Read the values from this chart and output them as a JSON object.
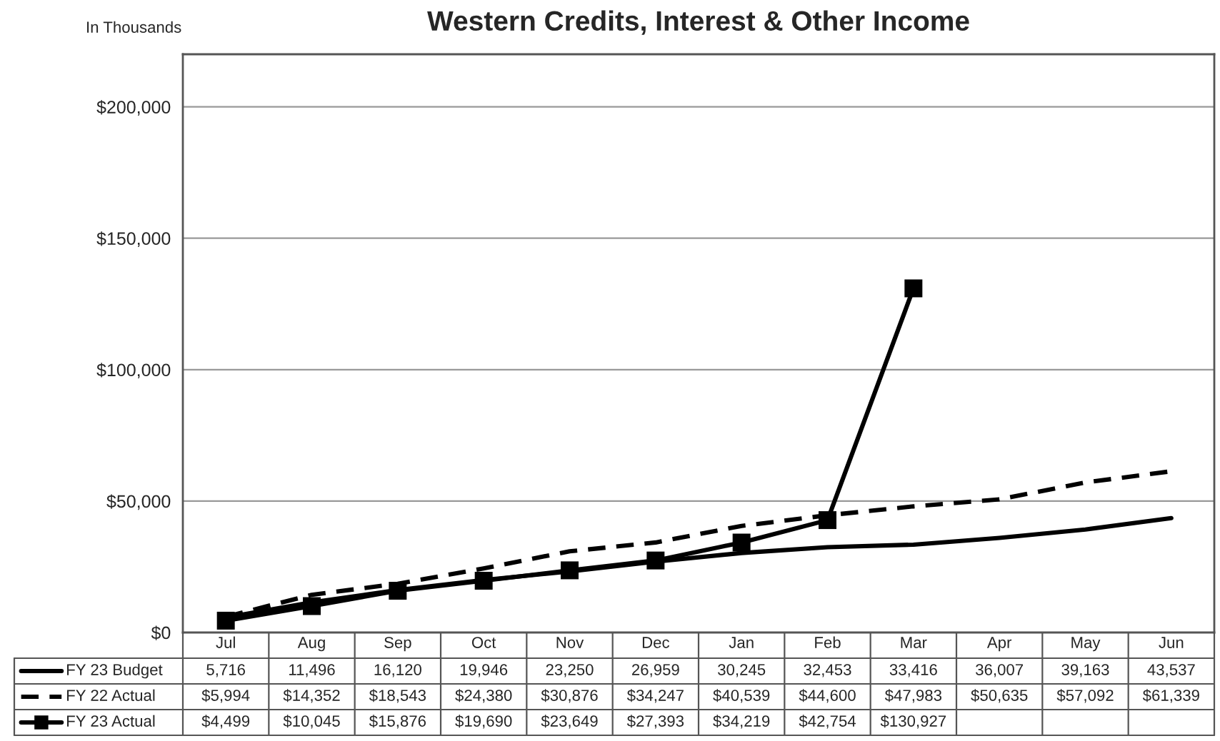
{
  "chart_data": {
    "type": "line",
    "title": "Western Credits, Interest & Other Income",
    "annotations": [
      "In Thousands"
    ],
    "categories": [
      "Jul",
      "Aug",
      "Sep",
      "Oct",
      "Nov",
      "Dec",
      "Jan",
      "Feb",
      "Mar",
      "Apr",
      "May",
      "Jun"
    ],
    "series": [
      {
        "name": "FY 23 Budget",
        "color": "#000000",
        "line_style": "solid",
        "marker": "none",
        "values": [
          5716,
          11496,
          16120,
          19946,
          23250,
          26959,
          30245,
          32453,
          33416,
          36007,
          39163,
          43537
        ],
        "value_labels": [
          "5,716",
          "11,496",
          "16,120",
          "19,946",
          "23,250",
          "26,959",
          "30,245",
          "32,453",
          "33,416",
          "36,007",
          "39,163",
          "43,537"
        ]
      },
      {
        "name": "FY 22 Actual",
        "color": "#000000",
        "line_style": "dashed",
        "marker": "none",
        "values": [
          5994,
          14352,
          18543,
          24380,
          30876,
          34247,
          40539,
          44600,
          47983,
          50635,
          57092,
          61339
        ],
        "value_labels": [
          "$5,994",
          "$14,352",
          "$18,543",
          "$24,380",
          "$30,876",
          "$34,247",
          "$40,539",
          "$44,600",
          "$47,983",
          "$50,635",
          "$57,092",
          "$61,339"
        ]
      },
      {
        "name": "FY 23 Actual",
        "color": "#000000",
        "line_style": "solid",
        "marker": "square",
        "values": [
          4499,
          10045,
          15876,
          19690,
          23649,
          27393,
          34219,
          42754,
          130927,
          null,
          null,
          null
        ],
        "value_labels": [
          "$4,499",
          "$10,045",
          "$15,876",
          "$19,690",
          "$23,649",
          "$27,393",
          "$34,219",
          "$42,754",
          "$130,927",
          null,
          null,
          null
        ]
      }
    ],
    "ylim": [
      0,
      220000
    ],
    "yticks": [
      {
        "value": 0,
        "label": "$0"
      },
      {
        "value": 50000,
        "label": "$50,000"
      },
      {
        "value": 100000,
        "label": "$100,000"
      },
      {
        "value": 150000,
        "label": "$150,000"
      },
      {
        "value": 200000,
        "label": "$200,000"
      }
    ],
    "grid": "y",
    "legend": "bottom"
  }
}
